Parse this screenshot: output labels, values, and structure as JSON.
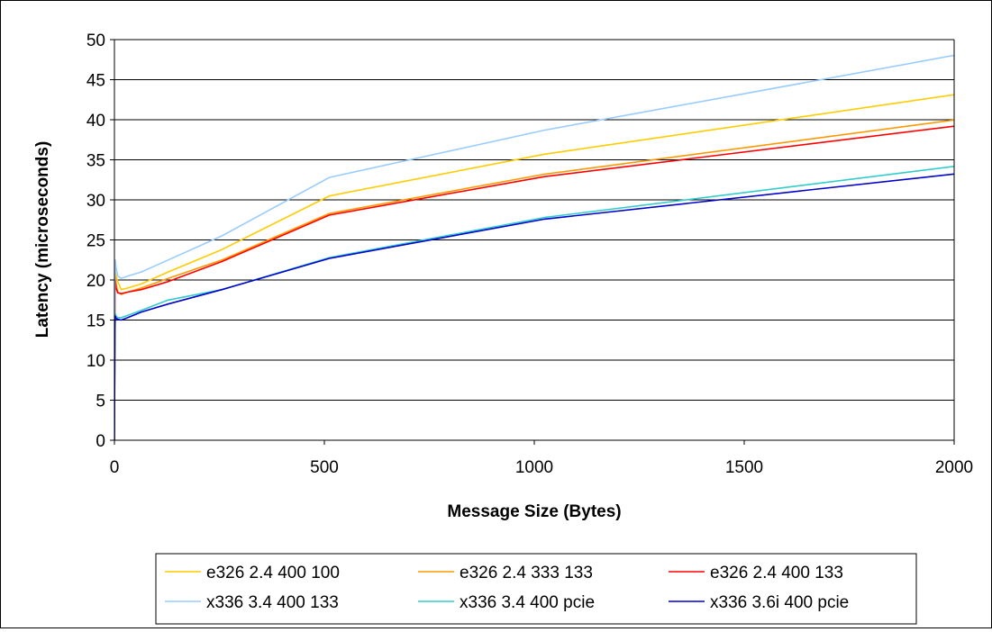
{
  "chart_data": {
    "type": "line",
    "title": "",
    "xlabel": "Message Size (Bytes)",
    "ylabel": "Latency (microseconds)",
    "xlim": [
      0,
      2000
    ],
    "ylim": [
      0,
      50
    ],
    "xticks": [
      0,
      500,
      1000,
      1500,
      2000
    ],
    "yticks": [
      0,
      5,
      10,
      15,
      20,
      25,
      30,
      35,
      40,
      45,
      50
    ],
    "grid": "horizontal",
    "legend_position": "bottom",
    "x": [
      0,
      1,
      2,
      4,
      8,
      16,
      32,
      64,
      128,
      256,
      512,
      1024,
      2048
    ],
    "series": [
      {
        "name": "e326 2.4 400 100",
        "color": "#ffcc00",
        "values": [
          0,
          17.5,
          21.0,
          20.5,
          19.8,
          18.8,
          19.0,
          19.5,
          21.0,
          23.8,
          30.5,
          35.7,
          43.5
        ]
      },
      {
        "name": "e326 2.4 333 133",
        "color": "#ff9900",
        "values": [
          0,
          17.0,
          20.5,
          19.5,
          18.5,
          18.2,
          18.5,
          19.0,
          20.2,
          22.5,
          28.3,
          33.2,
          40.3
        ]
      },
      {
        "name": "e326 2.4 400 133",
        "color": "#ff0000",
        "values": [
          0,
          16.5,
          20.0,
          19.0,
          18.4,
          18.3,
          18.5,
          18.8,
          19.8,
          22.3,
          28.1,
          32.9,
          39.5
        ]
      },
      {
        "name": "x336 3.4 400 133",
        "color": "#99ccff",
        "values": [
          0,
          18.5,
          22.5,
          21.5,
          20.5,
          20.2,
          20.5,
          21.0,
          22.5,
          25.5,
          32.8,
          38.7,
          48.5
        ]
      },
      {
        "name": "x336 3.4 400 pcie",
        "color": "#33cccc",
        "values": [
          0,
          14.5,
          15.8,
          15.5,
          15.3,
          15.3,
          15.6,
          16.2,
          17.5,
          18.8,
          22.8,
          27.8,
          34.5
        ]
      },
      {
        "name": "x336 3.6i 400 pcie",
        "color": "#0000cc",
        "values": [
          0,
          14.0,
          15.5,
          15.2,
          15.1,
          15.0,
          15.3,
          16.0,
          17.0,
          18.8,
          22.7,
          27.6,
          33.5
        ]
      }
    ]
  }
}
